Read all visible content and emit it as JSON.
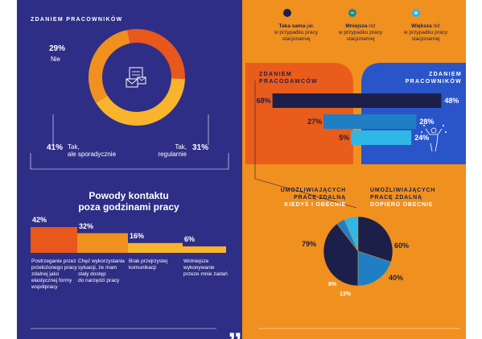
{
  "colors": {
    "navy": "#2e2e86",
    "orange": "#f0901f",
    "dark_navy": "#1b1f4a",
    "deep_orange": "#e8571c",
    "blue": "#1e7fc4",
    "cyan": "#2fb8e6",
    "yellow": "#f7b42c",
    "white": "#ffffff"
  },
  "left": {
    "donut_title": "ZDANIEM PRACOWNIKÓW",
    "donut_center_icon": "email-documents-icon",
    "donut": {
      "no": {
        "pct": "29%",
        "label": "Nie"
      },
      "sporadic": {
        "pct": "41%",
        "label_line1": "Tak,",
        "label_line2": "ale sporadycznie"
      },
      "regular": {
        "pct": "31%",
        "label_line1": "Tak,",
        "label_line2": "regularnie"
      }
    },
    "section_title_line1": "Powody kontaktu",
    "section_title_line2": "poza godzinami pracy"
  },
  "right": {
    "legend": [
      {
        "icon": "equal-dot-icon",
        "bold": "Taka sama",
        "text_line1": "jak",
        "text_line2": "w przypadku pracy",
        "text_line3": "stacjonarnej"
      },
      {
        "icon": "minus-dot-icon",
        "bold": "Mniejsza",
        "text_line1": "niż",
        "text_line2": "w przypadku pracy",
        "text_line3": "stacjonarnej"
      },
      {
        "icon": "plus-dot-icon",
        "bold": "Większa",
        "text_line1": "niż",
        "text_line2": "w przypadku pracy",
        "text_line3": "stacjonarnej"
      }
    ],
    "employers_title_line1": "ZDANIEM",
    "employers_title_line2": "PRACODAWCÓW",
    "employees_title_line1": "ZDANIEM",
    "employees_title_line2": "PRACOWNIKÓW",
    "pie_left_title_line1": "UMOŻLIWIAJĄCYCH",
    "pie_left_title_line2": "PRACĘ ZDALNĄ",
    "pie_left_subtitle": "KIEDYŚ I OBECNIE",
    "pie_right_title_line1": "UMOŻLIWIAJĄCYCH",
    "pie_right_title_line2": "PRACĘ ZDALNĄ",
    "pie_right_subtitle": "DOPIERO OBECNIE",
    "quote_mark": "„"
  },
  "chart_data": [
    {
      "type": "pie",
      "title": "ZDANIEM PRACOWNIKÓW",
      "categories": [
        "Nie",
        "Tak, ale sporadycznie",
        "Tak, regularnie"
      ],
      "values": [
        29,
        41,
        31
      ]
    },
    {
      "type": "bar",
      "title": "Powody kontaktu poza godzinami pracy",
      "categories": [
        "Postrzeganie przez przełożonego pracy zdalnej jako elastycznej formy współpracy",
        "Chęć wykorzystania sytuacji, że mam stały dostęp do narzędzi pracy",
        "Brak przejrzystej komunikacji",
        "Wolniejsze wykonywanie przeze mnie zadań"
      ],
      "category_lines": [
        [
          "Postrzeganie przez",
          "przełożonego pracy",
          "zdalnej jako",
          "elastycznej formy",
          "współpracy"
        ],
        [
          "Chęć wykorzystania",
          "sytuacji, że mam",
          "stały dostęp",
          "do narzędzi pracy"
        ],
        [
          "Brak przejrzystej",
          "komunikacji"
        ],
        [
          "Wolniejsze",
          "wykonywanie",
          "przeze mnie zadań"
        ]
      ],
      "values": [
        42,
        32,
        16,
        6
      ],
      "labels": [
        "42%",
        "32%",
        "16%",
        "6%"
      ],
      "colors": [
        "#e8571c",
        "#f0901f",
        "#f7b42c",
        "#f7b42c"
      ]
    },
    {
      "type": "bar",
      "title": "ZDANIEM PRACODAWCÓW",
      "categories": [
        "Taka sama",
        "Mniejsza",
        "Większa"
      ],
      "values": [
        68,
        27,
        5
      ],
      "labels": [
        "68%",
        "27%",
        "5%"
      ],
      "colors": [
        "#1b1f4a",
        "#1e7fc4",
        "#2fb8e6"
      ]
    },
    {
      "type": "bar",
      "title": "ZDANIEM PRACOWNIKÓW",
      "categories": [
        "Taka sama",
        "Mniejsza",
        "Większa"
      ],
      "values": [
        48,
        28,
        24
      ],
      "labels": [
        "48%",
        "28%",
        "24%"
      ],
      "colors": [
        "#1b1f4a",
        "#1e7fc4",
        "#2fb8e6"
      ]
    },
    {
      "type": "pie",
      "title": "UMOŻLIWIAJĄCYCH PRACĘ ZDALNĄ KIEDYŚ I OBECNIE",
      "categories": [
        "Taka sama",
        "Mniejsza",
        "Większa"
      ],
      "values": [
        79,
        8,
        13
      ],
      "labels": [
        "79%",
        "8%",
        "13%"
      ],
      "colors": [
        "#1b1f4a",
        "#1e7fc4",
        "#2fb8e6"
      ]
    },
    {
      "type": "pie",
      "title": "UMOŻLIWIAJĄCYCH PRACĘ ZDALNĄ DOPIERO OBECNIE",
      "categories": [
        "Taka sama",
        "Mniejsza"
      ],
      "values": [
        60,
        40
      ],
      "labels": [
        "60%",
        "40%"
      ],
      "colors": [
        "#1b1f4a",
        "#1e7fc4"
      ]
    }
  ]
}
